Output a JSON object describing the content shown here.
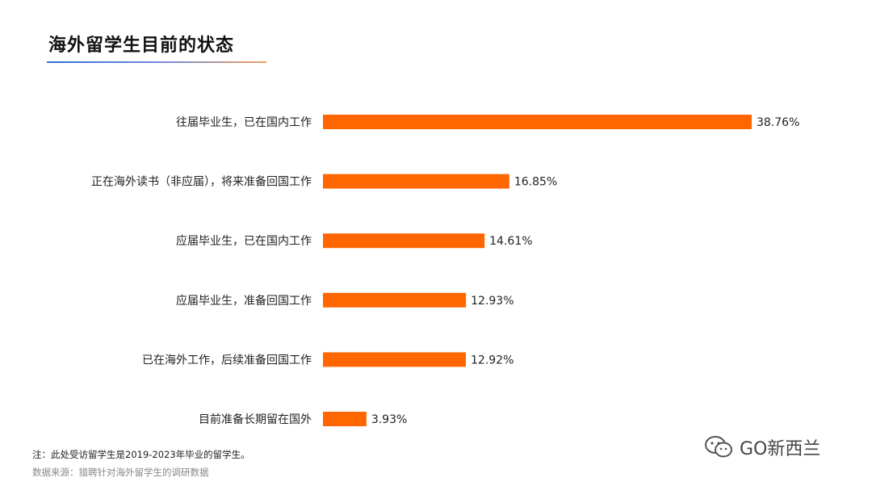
{
  "title": "海外留学生目前的状态",
  "footnote": "注：此处受访留学生是2019-2023年毕业的留学生。",
  "source": "数据来源：猎聘针对海外留学生的调研数据",
  "watermark": {
    "text": "GO新西兰",
    "icon": "wechat-icon"
  },
  "colors": {
    "bar": "#ff6600",
    "text": "#222222"
  },
  "chart_data": {
    "type": "bar",
    "orientation": "horizontal",
    "categories": [
      "往届毕业生，已在国内工作",
      "正在海外读书（非应届），将来准备回国工作",
      "应届毕业生，已在国内工作",
      "应届毕业生，准备回国工作",
      "已在海外工作，后续准备回国工作",
      "目前准备长期留在国外"
    ],
    "values": [
      38.76,
      16.85,
      14.61,
      12.93,
      12.92,
      3.93
    ],
    "value_labels": [
      "38.76%",
      "16.85%",
      "14.61%",
      "12.93%",
      "12.92%",
      "3.93%"
    ],
    "unit": "%",
    "xlim": [
      0,
      38.76
    ],
    "grid": false,
    "legend": "none"
  }
}
